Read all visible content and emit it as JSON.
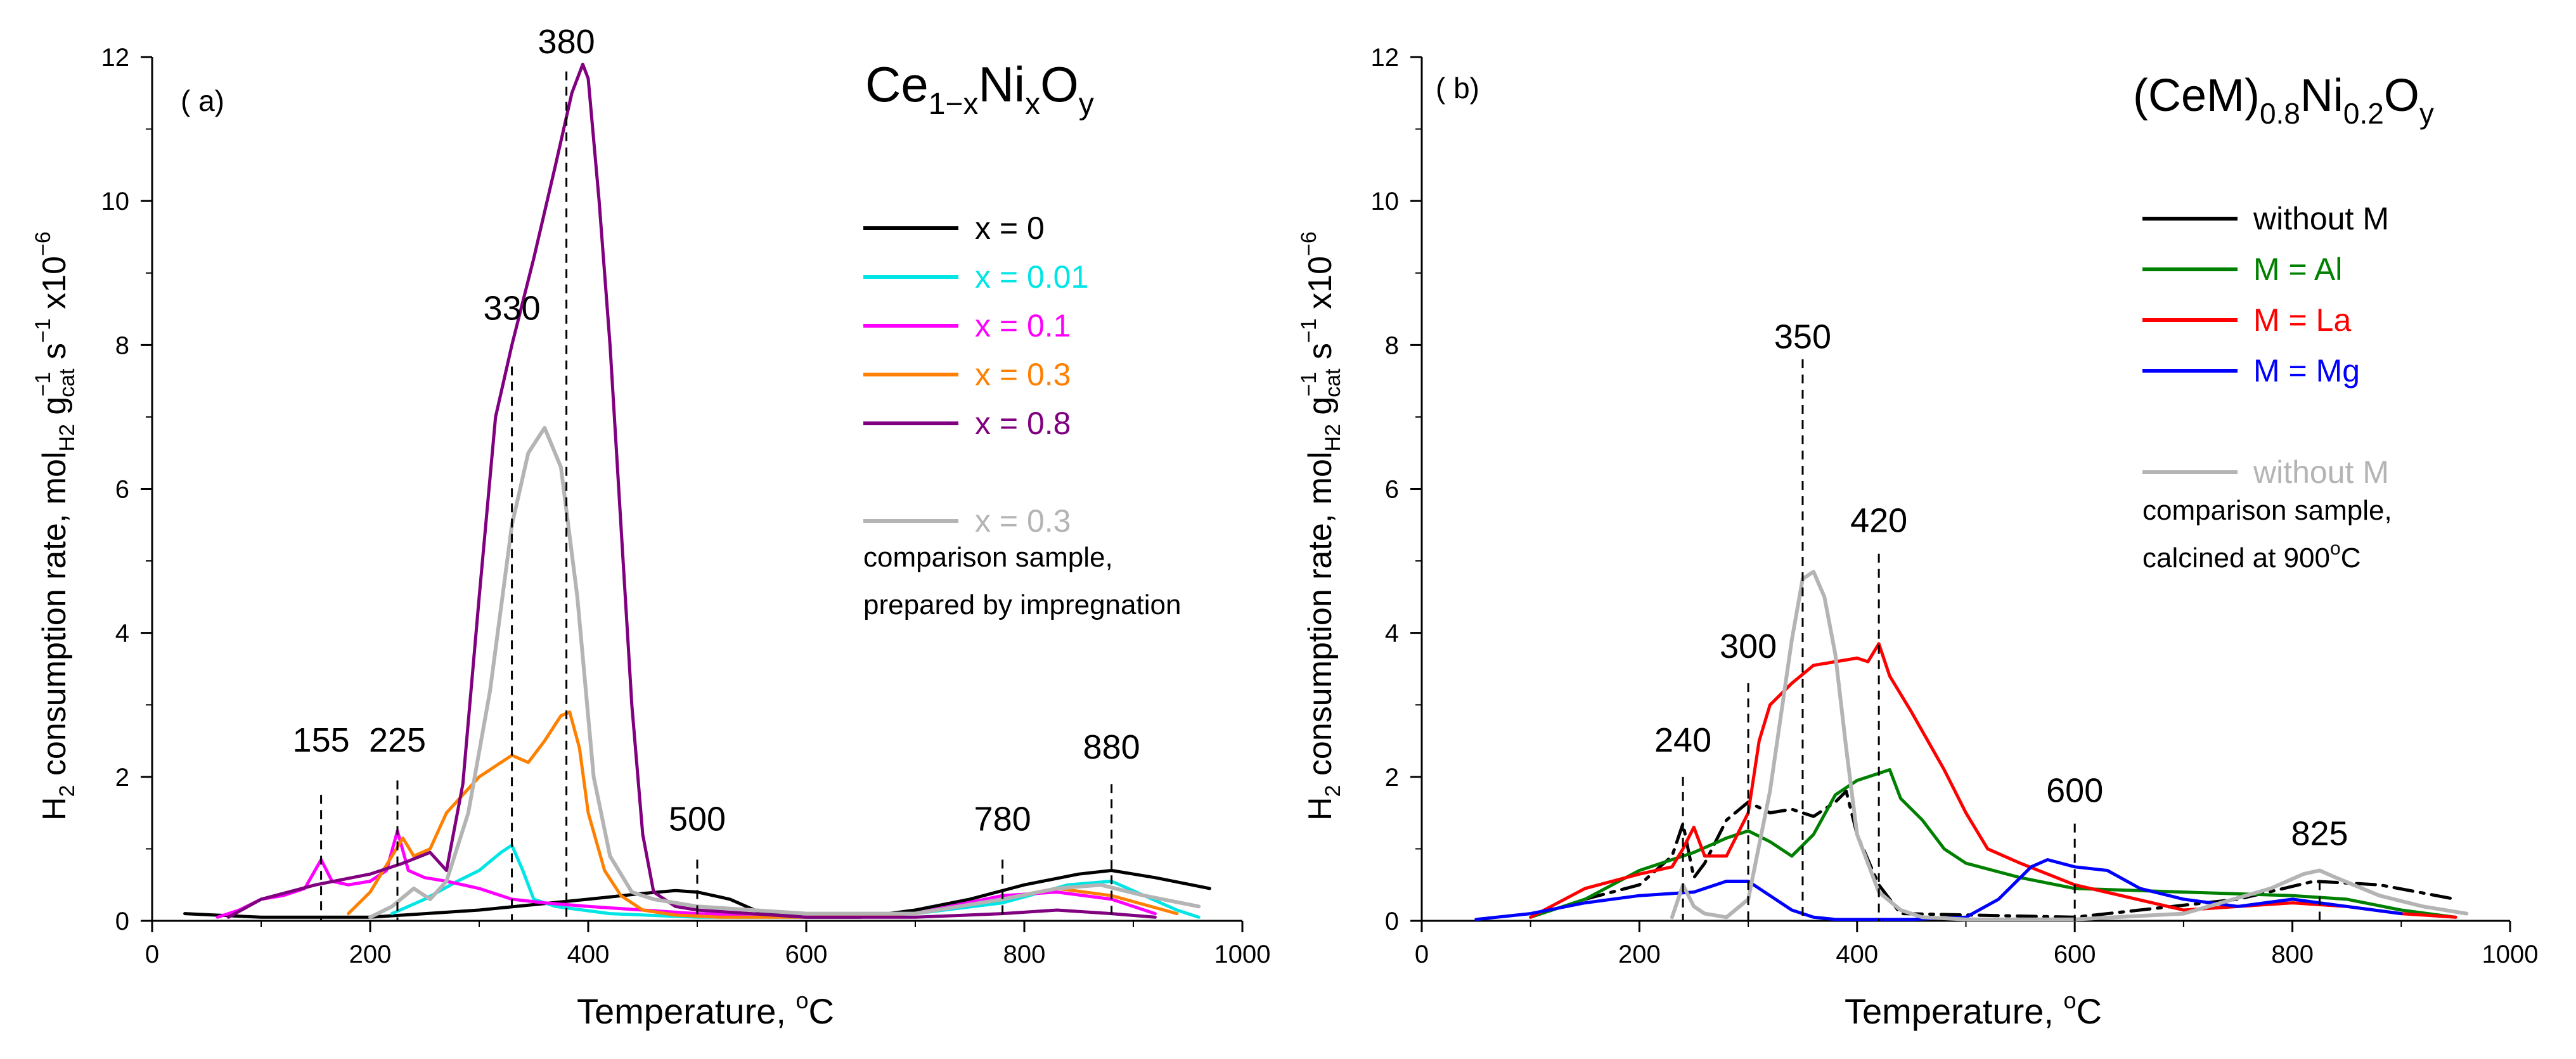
{
  "colors": {
    "black": "#000000",
    "cyan": "#00e5e5",
    "magenta": "#ff00ff",
    "orange": "#ff8000",
    "purple": "#800080",
    "gray": "#b4b4b4",
    "green": "#008000",
    "red": "#ff0000",
    "blue": "#0000ff"
  },
  "chart_data": [
    {
      "type": "line",
      "panel_label": "( a)",
      "title": {
        "main": "Ce",
        "sub1": "1−x",
        "mid": "Ni",
        "sub2": "x",
        "end": "O",
        "sub3": "y"
      },
      "xlabel": {
        "main": "Temperature, ",
        "sup": "o",
        "end": "C"
      },
      "ylabel": {
        "a": "H",
        "a_sub": "2",
        "b": " consumption rate, mol",
        "b_sub": "H2",
        "c": " g",
        "c_sup": "−1",
        "c_sub": "cat",
        "d": " s",
        "d_sup": "−1",
        "e": " x10",
        "e_sup": "−6"
      },
      "xlim": [
        0,
        1000
      ],
      "ylim": [
        0,
        12
      ],
      "x_ticks": [
        0,
        200,
        400,
        600,
        800,
        1000
      ],
      "y_ticks": [
        0,
        2,
        4,
        6,
        8,
        10,
        12
      ],
      "peak_markers": [
        {
          "x": 155,
          "label": "155",
          "y_top": 1.75,
          "label_y": 2.3
        },
        {
          "x": 225,
          "label": "225",
          "y_top": 1.95,
          "label_y": 2.3
        },
        {
          "x": 330,
          "label": "330",
          "y_top": 7.7,
          "label_y": 8.3
        },
        {
          "x": 380,
          "label": "380",
          "y_top": 11.8,
          "label_y": 12.0
        },
        {
          "x": 500,
          "label": "500",
          "y_top": 0.85,
          "label_y": 1.2
        },
        {
          "x": 780,
          "label": "780",
          "y_top": 0.85,
          "label_y": 1.2
        },
        {
          "x": 880,
          "label": "880",
          "y_top": 1.9,
          "label_y": 2.2
        }
      ],
      "legend": {
        "entries": [
          {
            "label": "x = 0",
            "color_key": "black",
            "style": "solid"
          },
          {
            "label": "x = 0.01",
            "color_key": "cyan",
            "style": "solid"
          },
          {
            "label": "x = 0.1",
            "color_key": "magenta",
            "style": "solid"
          },
          {
            "label": "x = 0.3",
            "color_key": "orange",
            "style": "solid"
          },
          {
            "label": "x = 0.8",
            "color_key": "purple",
            "style": "solid"
          },
          {
            "label": "x = 0.3",
            "color_key": "gray",
            "style": "solid",
            "gap_before": true
          }
        ],
        "note": [
          "comparison sample,",
          "prepared by impregnation"
        ]
      },
      "series": [
        {
          "name": "x = 0",
          "color_key": "black",
          "x": [
            30,
            100,
            200,
            300,
            400,
            450,
            480,
            500,
            530,
            560,
            600,
            650,
            700,
            750,
            800,
            850,
            880,
            920,
            970
          ],
          "y": [
            0.1,
            0.05,
            0.05,
            0.15,
            0.3,
            0.38,
            0.42,
            0.4,
            0.3,
            0.1,
            0.05,
            0.05,
            0.15,
            0.3,
            0.5,
            0.65,
            0.7,
            0.6,
            0.45
          ]
        },
        {
          "name": "x = 0.01",
          "color_key": "cyan",
          "x": [
            220,
            250,
            280,
            300,
            320,
            330,
            340,
            350,
            370,
            420,
            500,
            600,
            700,
            780,
            840,
            880,
            940,
            960
          ],
          "y": [
            0.1,
            0.3,
            0.55,
            0.7,
            0.95,
            1.05,
            0.7,
            0.3,
            0.2,
            0.1,
            0.05,
            0.05,
            0.1,
            0.25,
            0.5,
            0.55,
            0.15,
            0.05
          ]
        },
        {
          "name": "x = 0.1",
          "color_key": "magenta",
          "x": [
            60,
            80,
            100,
            120,
            140,
            155,
            165,
            180,
            200,
            215,
            225,
            235,
            250,
            270,
            300,
            330,
            360,
            400,
            450,
            500,
            600,
            700,
            780,
            830,
            880,
            920
          ],
          "y": [
            0.05,
            0.15,
            0.3,
            0.35,
            0.45,
            0.85,
            0.55,
            0.5,
            0.55,
            0.7,
            1.25,
            0.7,
            0.6,
            0.55,
            0.45,
            0.3,
            0.25,
            0.2,
            0.15,
            0.1,
            0.05,
            0.1,
            0.35,
            0.4,
            0.3,
            0.1
          ]
        },
        {
          "name": "x = 0.3",
          "color_key": "orange",
          "x": [
            180,
            200,
            220,
            230,
            240,
            255,
            270,
            300,
            320,
            330,
            345,
            360,
            375,
            383,
            392,
            400,
            415,
            430,
            450,
            480,
            520,
            600,
            700,
            780,
            830,
            880,
            940
          ],
          "y": [
            0.1,
            0.4,
            0.9,
            1.15,
            0.9,
            1.0,
            1.5,
            2.0,
            2.2,
            2.3,
            2.2,
            2.5,
            2.85,
            2.9,
            2.4,
            1.5,
            0.7,
            0.35,
            0.15,
            0.08,
            0.05,
            0.05,
            0.1,
            0.3,
            0.45,
            0.35,
            0.1
          ]
        },
        {
          "name": "x = 0.8",
          "color_key": "purple",
          "x": [
            70,
            100,
            150,
            200,
            230,
            255,
            270,
            285,
            300,
            315,
            330,
            350,
            370,
            385,
            395,
            400,
            410,
            420,
            430,
            440,
            450,
            460,
            480,
            500,
            600,
            700,
            780,
            830,
            880,
            920
          ],
          "y": [
            0.05,
            0.3,
            0.5,
            0.65,
            0.8,
            0.95,
            0.7,
            1.9,
            4.5,
            7.0,
            8.0,
            9.2,
            10.5,
            11.5,
            11.9,
            11.7,
            10.0,
            8.0,
            5.5,
            3.0,
            1.2,
            0.4,
            0.2,
            0.15,
            0.05,
            0.05,
            0.1,
            0.15,
            0.1,
            0.05
          ]
        },
        {
          "name": "x = 0.3 (comparison sample)",
          "color_key": "gray",
          "x": [
            200,
            220,
            240,
            255,
            270,
            290,
            310,
            330,
            345,
            360,
            375,
            390,
            405,
            420,
            440,
            460,
            480,
            500,
            600,
            700,
            780,
            830,
            870,
            910,
            960
          ],
          "y": [
            0.05,
            0.2,
            0.45,
            0.3,
            0.55,
            1.5,
            3.2,
            5.5,
            6.5,
            6.85,
            6.3,
            4.5,
            2.0,
            0.9,
            0.4,
            0.3,
            0.25,
            0.2,
            0.1,
            0.1,
            0.3,
            0.45,
            0.5,
            0.35,
            0.2
          ]
        }
      ]
    },
    {
      "type": "line",
      "panel_label": "( b)",
      "title": {
        "main": "(CeM)",
        "sub1": "0.8",
        "mid": "Ni",
        "sub2": "0.2",
        "end": "O",
        "sub3": "y"
      },
      "xlabel": {
        "main": "Temperature, ",
        "sup": "o",
        "end": "C"
      },
      "ylabel": {
        "a": "H",
        "a_sub": "2",
        "b": " consumption rate, mol",
        "b_sub": "H2",
        "c": " g",
        "c_sup": "−1",
        "c_sub": "cat",
        "d": " s",
        "d_sup": "−1",
        "e": " x10",
        "e_sup": "−6"
      },
      "xlim": [
        0,
        1000
      ],
      "ylim": [
        0,
        12
      ],
      "x_ticks": [
        0,
        200,
        400,
        600,
        800,
        1000
      ],
      "y_ticks": [
        0,
        2,
        4,
        6,
        8,
        10,
        12
      ],
      "peak_markers": [
        {
          "x": 240,
          "label": "240",
          "y_top": 2.0,
          "label_y": 2.3
        },
        {
          "x": 300,
          "label": "300",
          "y_top": 3.3,
          "label_y": 3.6
        },
        {
          "x": 350,
          "label": "350",
          "y_top": 7.8,
          "label_y": 7.9
        },
        {
          "x": 420,
          "label": "420",
          "y_top": 5.1,
          "label_y": 5.35
        },
        {
          "x": 600,
          "label": "600",
          "y_top": 1.35,
          "label_y": 1.6
        },
        {
          "x": 825,
          "label": "825",
          "y_top": 0.55,
          "label_y": 1.0
        }
      ],
      "legend": {
        "entries": [
          {
            "label": "without M",
            "color_key": "black",
            "style": "solid"
          },
          {
            "label": "M = Al",
            "color_key": "green",
            "style": "solid"
          },
          {
            "label": "M = La",
            "color_key": "red",
            "style": "solid"
          },
          {
            "label": "M = Mg",
            "color_key": "blue",
            "style": "solid"
          },
          {
            "label": "without M",
            "color_key": "gray",
            "style": "solid",
            "gap_before": true
          }
        ],
        "note": [
          "comparison sample,",
          "calcined at 900",
          "o",
          "C"
        ]
      },
      "series": [
        {
          "name": "without M",
          "color_key": "black",
          "style": "dashdot",
          "x": [
            150,
            200,
            230,
            240,
            250,
            260,
            280,
            300,
            320,
            340,
            360,
            380,
            390,
            400,
            420,
            440,
            600,
            750,
            820,
            880,
            950
          ],
          "y": [
            0.3,
            0.5,
            0.9,
            1.35,
            0.6,
            0.8,
            1.4,
            1.65,
            1.5,
            1.55,
            1.45,
            1.65,
            1.8,
            1.2,
            0.5,
            0.1,
            0.05,
            0.3,
            0.55,
            0.5,
            0.3
          ]
        },
        {
          "name": "M = Al",
          "color_key": "green",
          "x": [
            100,
            150,
            200,
            250,
            280,
            300,
            320,
            340,
            360,
            380,
            400,
            420,
            430,
            440,
            460,
            480,
            500,
            550,
            600,
            700,
            800,
            850,
            900,
            950
          ],
          "y": [
            0.05,
            0.3,
            0.7,
            0.95,
            1.15,
            1.25,
            1.1,
            0.9,
            1.2,
            1.75,
            1.95,
            2.05,
            2.1,
            1.7,
            1.4,
            1.0,
            0.8,
            0.6,
            0.45,
            0.4,
            0.35,
            0.3,
            0.15,
            0.05
          ]
        },
        {
          "name": "M = La",
          "color_key": "red",
          "x": [
            100,
            150,
            200,
            230,
            240,
            250,
            260,
            280,
            300,
            310,
            320,
            340,
            360,
            380,
            400,
            410,
            420,
            430,
            450,
            480,
            500,
            520,
            550,
            600,
            700,
            800,
            850,
            900,
            950
          ],
          "y": [
            0.05,
            0.45,
            0.65,
            0.75,
            1.0,
            1.3,
            0.9,
            0.9,
            1.5,
            2.5,
            3.0,
            3.3,
            3.55,
            3.6,
            3.65,
            3.6,
            3.85,
            3.4,
            2.9,
            2.1,
            1.5,
            1.0,
            0.8,
            0.5,
            0.15,
            0.25,
            0.2,
            0.1,
            0.05
          ]
        },
        {
          "name": "M = Mg",
          "color_key": "blue",
          "x": [
            50,
            100,
            150,
            200,
            250,
            280,
            300,
            320,
            340,
            360,
            380,
            400,
            450,
            500,
            530,
            560,
            575,
            600,
            630,
            660,
            700,
            750,
            800,
            850,
            900
          ],
          "y": [
            0.02,
            0.1,
            0.25,
            0.35,
            0.4,
            0.55,
            0.55,
            0.35,
            0.15,
            0.05,
            0.02,
            0.02,
            0.02,
            0.05,
            0.3,
            0.75,
            0.85,
            0.75,
            0.7,
            0.45,
            0.3,
            0.2,
            0.3,
            0.2,
            0.1
          ]
        },
        {
          "name": "without M (comparison sample, calcined at 900°C)",
          "color_key": "gray",
          "x": [
            230,
            240,
            250,
            260,
            280,
            300,
            320,
            340,
            350,
            360,
            370,
            380,
            390,
            400,
            420,
            440,
            460,
            500,
            600,
            700,
            780,
            810,
            825,
            840,
            880,
            920,
            960
          ],
          "y": [
            0.05,
            0.5,
            0.2,
            0.1,
            0.05,
            0.3,
            1.8,
            3.9,
            4.75,
            4.85,
            4.5,
            3.7,
            2.4,
            1.2,
            0.4,
            0.15,
            0.05,
            0.02,
            0.02,
            0.1,
            0.45,
            0.65,
            0.7,
            0.6,
            0.35,
            0.2,
            0.1
          ]
        }
      ]
    }
  ]
}
